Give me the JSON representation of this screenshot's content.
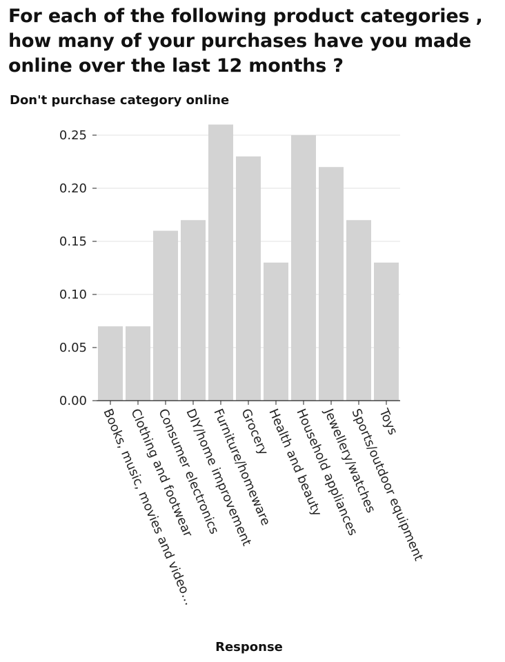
{
  "chart_data": {
    "type": "bar",
    "title": "For each of the following product categories , how many of your purchases have you made online over the last 12 months ?",
    "xlabel": "Response",
    "ylabel": "Don't purchase category online",
    "ylim": [
      0,
      0.27
    ],
    "yticks": [
      "0.00",
      "0.05",
      "0.10",
      "0.15",
      "0.20",
      "0.25"
    ],
    "grid": true,
    "bar_color": "#d3d3d3",
    "categories": [
      "Books, music, movies and video…",
      "Clothing and footwear",
      "Consumer electronics",
      "DIY/home improvement",
      "Furniture/homeware",
      "Grocery",
      "Health and beauty",
      "Household appliances",
      "Jewellery/watches",
      "Sports/outdoor equipment",
      "Toys"
    ],
    "values": [
      0.07,
      0.07,
      0.16,
      0.17,
      0.26,
      0.23,
      0.13,
      0.25,
      0.22,
      0.17,
      0.13
    ]
  }
}
